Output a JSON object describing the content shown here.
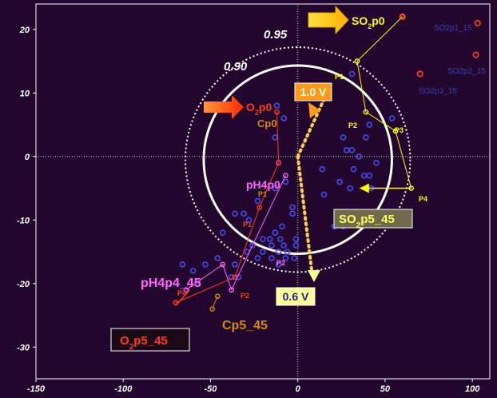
{
  "chart_data": {
    "type": "scatter",
    "xlim": [
      -150,
      110
    ],
    "ylim": [
      -35,
      24
    ],
    "x_ticks": [
      -150,
      -100,
      -50,
      0,
      50,
      100
    ],
    "y_ticks": [
      20,
      10,
      0,
      -10,
      -20,
      -30
    ],
    "grid": false,
    "dotted_zero_lines": true,
    "circles": [
      {
        "label": "0.90",
        "radius": 49
      },
      {
        "label": "0.95",
        "radius": 56
      }
    ],
    "colors": {
      "background": "#22062e",
      "frame": "#ffffff",
      "points": "#4a4ae8",
      "o2": "#ff3a1a",
      "cp": "#d08a10",
      "ph": "#ff66ff",
      "so2": "#ffff00",
      "voltage_line": "#ffcc55"
    },
    "points": [
      [
        -12,
        8
      ],
      [
        -8,
        6
      ],
      [
        -13,
        3
      ],
      [
        -11,
        -1
      ],
      [
        -13,
        -5
      ],
      [
        -7,
        -4
      ],
      [
        -23,
        -7
      ],
      [
        -28,
        -10
      ],
      [
        -31,
        -9
      ],
      [
        -36,
        -9
      ],
      [
        -43,
        -12
      ],
      [
        -26,
        -14
      ],
      [
        -20,
        -13
      ],
      [
        -16,
        -13
      ],
      [
        -13,
        -12
      ],
      [
        -9,
        -11
      ],
      [
        -3,
        -9
      ],
      [
        -2,
        -16
      ],
      [
        -7,
        -16
      ],
      [
        -11,
        -15
      ],
      [
        -15,
        -16
      ],
      [
        -20,
        -15
      ],
      [
        -29,
        -15
      ],
      [
        -36,
        -17
      ],
      [
        -46,
        -16
      ],
      [
        -53,
        -17
      ],
      [
        -60,
        -18
      ],
      [
        -66,
        -17
      ],
      [
        -38,
        -19
      ],
      [
        -34,
        -19
      ],
      [
        -10,
        -13
      ],
      [
        -15,
        -14
      ],
      [
        -11,
        -17
      ],
      [
        -6,
        -15
      ],
      [
        -23,
        -16
      ],
      [
        -8,
        -14
      ],
      [
        -1,
        -13
      ],
      [
        -3,
        -8
      ],
      [
        -1,
        -14
      ],
      [
        15,
        -6
      ],
      [
        21,
        -11
      ],
      [
        26,
        -11
      ],
      [
        24,
        -4
      ],
      [
        30,
        -5
      ],
      [
        32,
        -2
      ],
      [
        41,
        -3
      ],
      [
        42,
        -5
      ],
      [
        45,
        -1
      ],
      [
        35,
        0
      ],
      [
        31,
        1
      ],
      [
        28,
        1
      ],
      [
        26,
        3
      ],
      [
        41,
        5
      ],
      [
        39,
        3
      ],
      [
        54,
        6
      ],
      [
        31,
        13
      ],
      [
        38,
        -3
      ],
      [
        14,
        -2
      ]
    ],
    "series": [
      {
        "name": "O2",
        "color": "#ff3a1a",
        "points": [
          [
            -12,
            7
          ],
          [
            -11,
            -1
          ],
          [
            -22,
            -8
          ],
          [
            -36,
            -19
          ],
          [
            -70,
            -23
          ]
        ]
      },
      {
        "name": "Cp",
        "color": "#d08a10",
        "points": [
          [
            -46,
            -22
          ],
          [
            -49,
            -24
          ]
        ]
      },
      {
        "name": "pH4",
        "color": "#ff66ff",
        "points": [
          [
            -7,
            -3
          ],
          [
            -38,
            -21
          ],
          [
            -43,
            -17
          ],
          [
            -64,
            -21
          ]
        ]
      },
      {
        "name": "SO2",
        "color": "#ffff00",
        "points": [
          [
            60,
            22
          ],
          [
            34,
            15
          ],
          [
            39,
            7
          ],
          [
            56,
            4
          ],
          [
            65,
            -5
          ]
        ]
      }
    ],
    "so2_outliers": [
      {
        "x": 60,
        "y": 22
      },
      {
        "x": 103,
        "y": 21
      },
      {
        "x": 102,
        "y": 16
      },
      {
        "x": 70,
        "y": 13
      }
    ],
    "voltage_arrows": [
      {
        "label": "1.0 V",
        "from": [
          0,
          0
        ],
        "to": [
          15,
          9
        ]
      },
      {
        "label": "0.6 V",
        "from": [
          0,
          0
        ],
        "to": [
          8,
          -18
        ]
      }
    ],
    "annotations": {
      "c95": "0.95",
      "c90": "0.90",
      "so2p0": "SO",
      "so2p0_sub": "2",
      "so2p0_tail": "p0",
      "o2p0": "O",
      "o2p0_sub": "2",
      "o2p0_tail": "p0",
      "cp0": "Cp0",
      "ph4p0": "pH4p0",
      "ph4p4_45": "pH4p4_45",
      "cp5_45": "Cp5_45",
      "o2p5_45_a": "O",
      "o2p5_45_sub": "2",
      "o2p5_45_b": "p5_45",
      "so2p5_45_a": "SO",
      "so2p5_45_sub": "2",
      "so2p5_45_b": "p5_45",
      "v10": "1.0 V",
      "v06": "0.6 V",
      "so2p1_15": "SO2p1_15",
      "so2p2_15": "SO2p2_15",
      "so2p3_15": "SO2p3_15",
      "so_p1": "P1",
      "so_p2": "P2",
      "so_p3": "P3",
      "so_p4": "P4",
      "o_p1": "P1",
      "o_p2": "P2",
      "o_p4": "P4",
      "ph_p1": "P1",
      "ph_p2": "P2"
    }
  }
}
